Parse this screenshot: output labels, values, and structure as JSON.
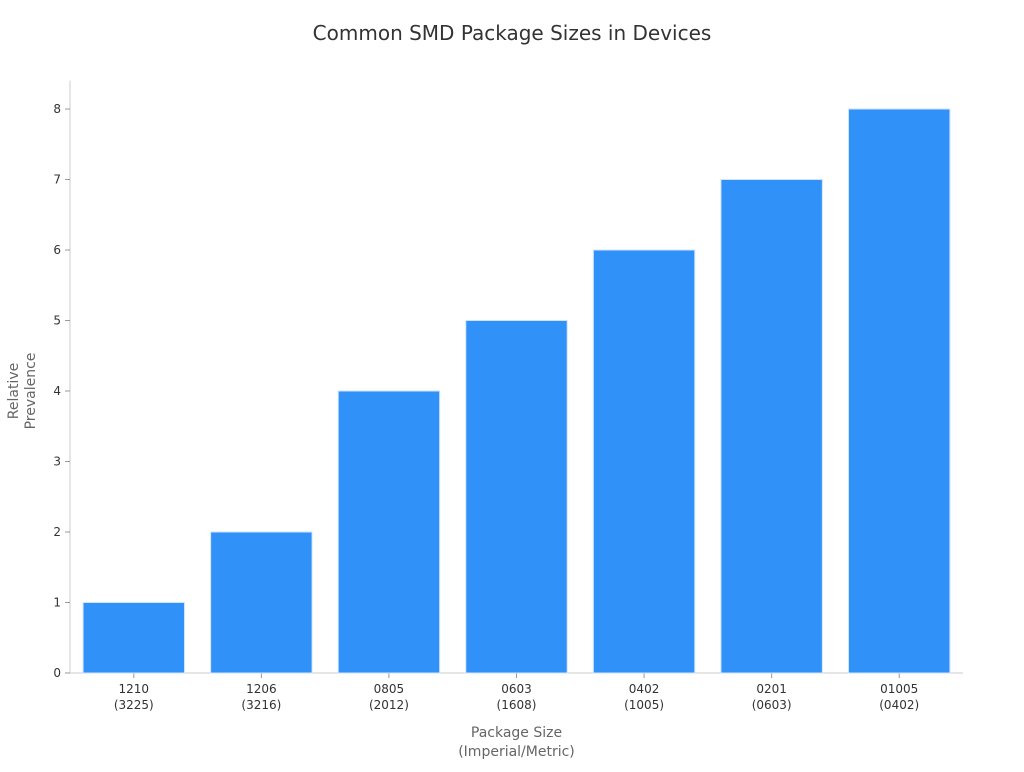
{
  "chart_data": {
    "type": "bar",
    "title": "Common SMD Package Sizes in Devices",
    "xlabel": [
      "Package Size",
      "(Imperial/Metric)"
    ],
    "ylabel": [
      "Relative",
      "Prevalence"
    ],
    "categories": [
      [
        "1210",
        "(3225)"
      ],
      [
        "1206",
        "(3216)"
      ],
      [
        "0805",
        "(2012)"
      ],
      [
        "0603",
        "(1608)"
      ],
      [
        "0402",
        "(1005)"
      ],
      [
        "0201",
        "(0603)"
      ],
      [
        "01005",
        "(0402)"
      ]
    ],
    "values": [
      1,
      2,
      4,
      5,
      6,
      7,
      8
    ],
    "ylim": [
      0,
      8.4
    ],
    "yticks": [
      0,
      1,
      2,
      3,
      4,
      5,
      6,
      7,
      8
    ],
    "grid": false,
    "bar_color": "#3092f8"
  }
}
